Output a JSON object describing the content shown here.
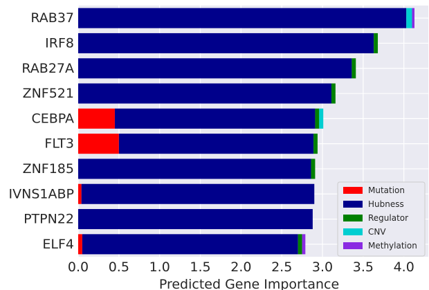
{
  "chart_data": {
    "type": "bar",
    "orientation": "horizontal",
    "stacked": true,
    "title": "",
    "xlabel": "Predicted Gene Importance",
    "ylabel": "",
    "xlim": [
      0,
      4.3
    ],
    "xticks": [
      "0.0",
      "0.5",
      "1.0",
      "1.5",
      "2.0",
      "2.5",
      "3.0",
      "3.5",
      "4.0"
    ],
    "grid": true,
    "legend_position": "bottom-right",
    "categories": [
      "RAB37",
      "IRF8",
      "RAB27A",
      "ZNF521",
      "CEBPA",
      "FLT3",
      "ZNF185",
      "IVNS1ABP",
      "PTPN22",
      "ELF4"
    ],
    "series": [
      {
        "name": "Mutation",
        "color": "#ff0000",
        "values": [
          0.0,
          0.0,
          0.0,
          0.0,
          0.45,
          0.5,
          0.0,
          0.04,
          0.0,
          0.05
        ]
      },
      {
        "name": "Hubness",
        "color": "#00008b",
        "values": [
          4.03,
          3.63,
          3.36,
          3.11,
          2.46,
          2.39,
          2.86,
          2.86,
          2.88,
          2.65
        ]
      },
      {
        "name": "Regulator",
        "color": "#008000",
        "values": [
          0.0,
          0.05,
          0.05,
          0.05,
          0.05,
          0.05,
          0.05,
          0.0,
          0.0,
          0.05
        ]
      },
      {
        "name": "CNV",
        "color": "#00ced1",
        "values": [
          0.07,
          0.0,
          0.0,
          0.0,
          0.05,
          0.0,
          0.0,
          0.0,
          0.0,
          0.0
        ]
      },
      {
        "name": "Methylation",
        "color": "#8a2be2",
        "values": [
          0.03,
          0.0,
          0.0,
          0.0,
          0.0,
          0.0,
          0.0,
          0.0,
          0.0,
          0.04
        ]
      }
    ]
  }
}
